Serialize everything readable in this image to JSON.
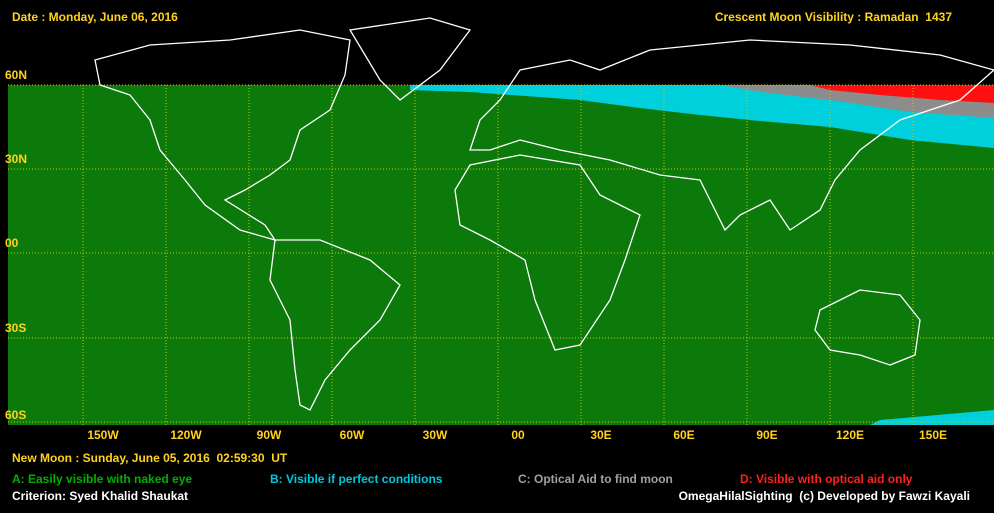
{
  "header": {
    "date": "Date : Monday, June 06, 2016",
    "title": "Crescent Moon Visibility : Ramadan  1437"
  },
  "map": {
    "latitude_labels": [
      "60N",
      "30N",
      "00",
      "30S",
      "60S"
    ],
    "longitude_labels": [
      "150W",
      "120W",
      "90W",
      "60W",
      "30W",
      "00",
      "30E",
      "60E",
      "90E",
      "120E",
      "150E"
    ]
  },
  "footer": {
    "new_moon": "New Moon : Sunday, June 05, 2016  02:59:30  UT",
    "legend": [
      {
        "label": "A: Easily visible with naked eye",
        "color": "#00b000"
      },
      {
        "label": "B: Visible if perfect conditions",
        "color": "#00c8dc"
      },
      {
        "label": "C: Optical Aid to find moon",
        "color": "#a0a0a0"
      },
      {
        "label": "D: Visible with optical aid only",
        "color": "#ff2020"
      }
    ],
    "criterion": "Criterion: Syed Khalid Shaukat",
    "credit": "OmegaHilalSighting  (c) Developed by Fawzi Kayali"
  }
}
